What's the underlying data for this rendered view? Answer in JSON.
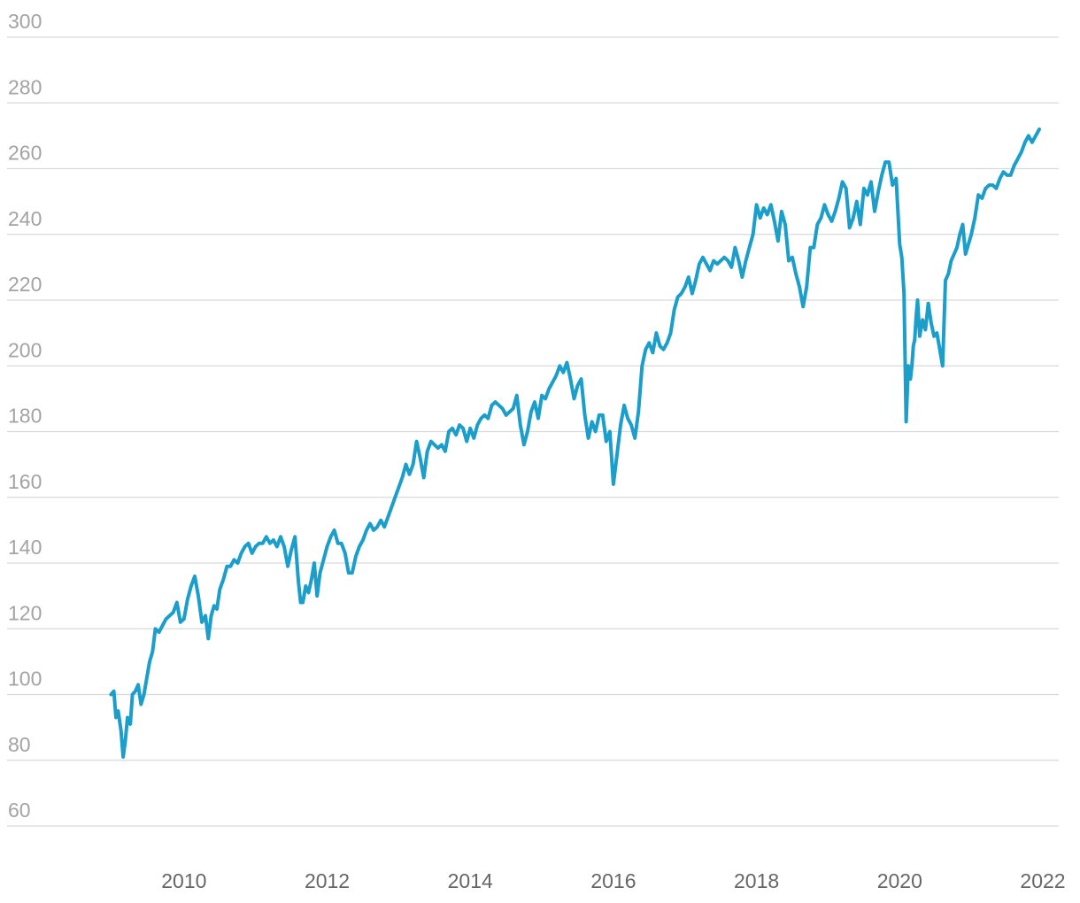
{
  "colors": {
    "series": "#1c9ecb",
    "grid": "#d9d9d9",
    "y_tick_text": "#a3a3a3",
    "x_tick_text": "#666666",
    "background": "#ffffff"
  },
  "chart_data": {
    "type": "line",
    "title": "",
    "xlabel": "",
    "ylabel": "",
    "grid": true,
    "legend": "none",
    "xlim": [
      2009.0,
      2022.0
    ],
    "ylim": [
      60,
      300
    ],
    "x_ticks": [
      2010,
      2012,
      2014,
      2016,
      2018,
      2020,
      2022
    ],
    "x_tick_labels": [
      "2010",
      "2012",
      "2014",
      "2016",
      "2018",
      "2020",
      "2022"
    ],
    "y_ticks": [
      60,
      80,
      100,
      120,
      140,
      160,
      180,
      200,
      220,
      240,
      260,
      280,
      300
    ],
    "y_tick_labels": [
      "60",
      "80",
      "100",
      "120",
      "140",
      "160",
      "180",
      "200",
      "220",
      "240",
      "260",
      "280",
      "300"
    ],
    "series": [
      {
        "x": [
          2008.98,
          2009.02,
          2009.05,
          2009.08,
          2009.12,
          2009.15,
          2009.18,
          2009.21,
          2009.25,
          2009.28,
          2009.32,
          2009.36,
          2009.4,
          2009.44,
          2009.48,
          2009.52,
          2009.56,
          2009.6,
          2009.65,
          2009.7,
          2009.75,
          2009.8,
          2009.85,
          2009.9,
          2009.95,
          2010.0,
          2010.05,
          2010.1,
          2010.15,
          2010.2,
          2010.25,
          2010.3,
          2010.34,
          2010.38,
          2010.42,
          2010.46,
          2010.5,
          2010.55,
          2010.6,
          2010.65,
          2010.7,
          2010.75,
          2010.8,
          2010.85,
          2010.9,
          2010.95,
          2011.0,
          2011.05,
          2011.1,
          2011.15,
          2011.2,
          2011.25,
          2011.3,
          2011.35,
          2011.4,
          2011.45,
          2011.5,
          2011.55,
          2011.6,
          2011.63,
          2011.66,
          2011.7,
          2011.74,
          2011.78,
          2011.82,
          2011.86,
          2011.9,
          2011.95,
          2012.0,
          2012.05,
          2012.1,
          2012.15,
          2012.2,
          2012.25,
          2012.3,
          2012.35,
          2012.4,
          2012.45,
          2012.5,
          2012.55,
          2012.6,
          2012.65,
          2012.7,
          2012.75,
          2012.8,
          2012.85,
          2012.9,
          2012.95,
          2013.0,
          2013.05,
          2013.1,
          2013.15,
          2013.2,
          2013.25,
          2013.3,
          2013.35,
          2013.4,
          2013.45,
          2013.5,
          2013.55,
          2013.6,
          2013.65,
          2013.7,
          2013.75,
          2013.8,
          2013.85,
          2013.9,
          2013.95,
          2014.0,
          2014.05,
          2014.1,
          2014.15,
          2014.2,
          2014.25,
          2014.3,
          2014.35,
          2014.4,
          2014.45,
          2014.5,
          2014.55,
          2014.6,
          2014.65,
          2014.7,
          2014.75,
          2014.8,
          2014.85,
          2014.9,
          2014.95,
          2015.0,
          2015.05,
          2015.1,
          2015.15,
          2015.2,
          2015.25,
          2015.3,
          2015.35,
          2015.4,
          2015.45,
          2015.5,
          2015.55,
          2015.6,
          2015.65,
          2015.7,
          2015.75,
          2015.8,
          2015.85,
          2015.9,
          2015.95,
          2016.0,
          2016.05,
          2016.1,
          2016.15,
          2016.2,
          2016.25,
          2016.3,
          2016.35,
          2016.4,
          2016.45,
          2016.5,
          2016.55,
          2016.6,
          2016.65,
          2016.7,
          2016.75,
          2016.8,
          2016.85,
          2016.9,
          2016.95,
          2017.0,
          2017.05,
          2017.1,
          2017.15,
          2017.2,
          2017.25,
          2017.3,
          2017.35,
          2017.4,
          2017.45,
          2017.5,
          2017.55,
          2017.6,
          2017.65,
          2017.7,
          2017.75,
          2017.8,
          2017.85,
          2017.9,
          2017.95,
          2018.0,
          2018.05,
          2018.1,
          2018.15,
          2018.2,
          2018.25,
          2018.3,
          2018.35,
          2018.4,
          2018.45,
          2018.5,
          2018.55,
          2018.6,
          2018.65,
          2018.7,
          2018.75,
          2018.8,
          2018.85,
          2018.9,
          2018.95,
          2019.0,
          2019.05,
          2019.1,
          2019.15,
          2019.2,
          2019.25,
          2019.3,
          2019.35,
          2019.4,
          2019.45,
          2019.5,
          2019.55,
          2019.6,
          2019.65,
          2019.7,
          2019.75,
          2019.8,
          2019.85,
          2019.9,
          2019.95,
          2020.0,
          2020.03,
          2020.06,
          2020.09,
          2020.12,
          2020.15,
          2020.17,
          2020.19,
          2020.21,
          2020.23,
          2020.25,
          2020.28,
          2020.32,
          2020.36,
          2020.4,
          2020.44,
          2020.48,
          2020.52,
          2020.56,
          2020.6,
          2020.64,
          2020.68,
          2020.72,
          2020.76,
          2020.8,
          2020.84,
          2020.88,
          2020.92,
          2020.96,
          2021.0,
          2021.05,
          2021.1,
          2021.15,
          2021.2,
          2021.25,
          2021.3,
          2021.35,
          2021.4,
          2021.45,
          2021.5,
          2021.55,
          2021.6,
          2021.65,
          2021.7,
          2021.75,
          2021.8,
          2021.85,
          2021.9,
          2021.95
        ],
        "y": [
          100,
          101,
          93,
          95,
          89,
          81,
          86,
          93,
          91,
          100,
          101,
          103,
          97,
          100,
          105,
          110,
          113,
          120,
          119,
          121,
          123,
          124,
          125,
          128,
          122,
          123,
          129,
          133,
          136,
          130,
          122,
          124,
          117,
          124,
          127,
          126,
          132,
          135,
          139,
          139,
          141,
          140,
          143,
          145,
          146,
          143,
          145,
          146,
          146,
          148,
          146,
          147,
          145,
          148,
          145,
          139,
          144,
          148,
          134,
          128,
          128,
          133,
          131,
          135,
          140,
          130,
          137,
          141,
          145,
          148,
          150,
          146,
          146,
          143,
          137,
          137,
          142,
          145,
          147,
          150,
          152,
          150,
          151,
          153,
          151,
          154,
          157,
          160,
          163,
          166,
          170,
          167,
          170,
          177,
          172,
          166,
          174,
          177,
          176,
          175,
          176,
          174,
          180,
          181,
          179,
          182,
          181,
          177,
          181,
          178,
          182,
          184,
          185,
          184,
          188,
          189,
          188,
          187,
          185,
          186,
          187,
          191,
          182,
          176,
          180,
          186,
          189,
          184,
          191,
          190,
          193,
          195,
          197,
          200,
          198,
          201,
          196,
          190,
          194,
          196,
          185,
          178,
          183,
          180,
          185,
          185,
          177,
          180,
          164,
          173,
          182,
          188,
          184,
          182,
          178,
          186,
          200,
          205,
          207,
          204,
          210,
          206,
          205,
          207,
          210,
          217,
          221,
          222,
          224,
          227,
          222,
          226,
          231,
          233,
          231,
          229,
          232,
          231,
          232,
          233,
          232,
          230,
          236,
          232,
          227,
          232,
          236,
          240,
          249,
          245,
          248,
          246,
          249,
          244,
          238,
          247,
          243,
          232,
          233,
          228,
          224,
          218,
          224,
          236,
          236,
          243,
          245,
          249,
          246,
          244,
          247,
          251,
          256,
          254,
          242,
          245,
          250,
          243,
          254,
          252,
          256,
          247,
          253,
          258,
          262,
          262,
          255,
          257,
          237,
          233,
          222,
          183,
          200,
          196,
          200,
          206,
          208,
          215,
          220,
          209,
          214,
          211,
          219,
          213,
          209,
          210,
          205,
          200,
          226,
          228,
          232,
          234,
          236,
          240,
          243,
          234,
          237,
          240,
          245,
          252,
          251,
          254,
          255,
          255,
          254,
          257,
          259,
          258,
          258,
          261,
          263,
          265,
          268,
          270,
          268,
          270,
          272
        ]
      }
    ]
  }
}
